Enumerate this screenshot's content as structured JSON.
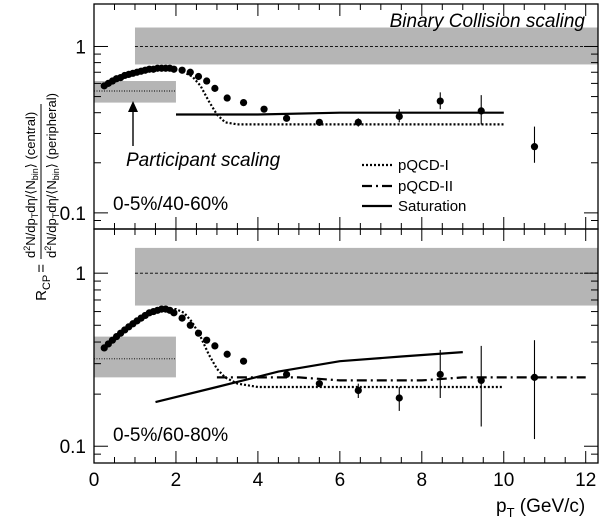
{
  "chart_data": [
    {
      "type": "scatter",
      "panel": "top",
      "label": "0-5%/40-60%",
      "ylim": [
        0.08,
        1.8
      ],
      "yscale": "log",
      "xlim": [
        0,
        12.3
      ],
      "yticks": [
        "1",
        "0.1"
      ],
      "yticks_values": [
        1,
        0.1
      ],
      "annotations": {
        "binary": "Binary Collision scaling",
        "participant": "Participant scaling"
      },
      "binary_band": {
        "x": [
          1.0,
          12.3
        ],
        "y": [
          0.78,
          1.3
        ],
        "line_y": 1.0
      },
      "participant_band": {
        "x": [
          0.0,
          2.0
        ],
        "y": [
          0.46,
          0.62
        ],
        "line_y": 0.54
      },
      "series": [
        {
          "name": "data",
          "x": [
            0.25,
            0.35,
            0.45,
            0.55,
            0.65,
            0.75,
            0.85,
            0.95,
            1.05,
            1.15,
            1.25,
            1.35,
            1.45,
            1.55,
            1.65,
            1.75,
            1.85,
            1.95,
            2.15,
            2.35,
            2.55,
            2.75,
            2.95,
            3.25,
            3.65,
            4.15,
            4.7,
            5.5,
            6.45,
            7.45,
            8.45,
            9.45,
            10.75
          ],
          "y": [
            0.58,
            0.6,
            0.62,
            0.64,
            0.65,
            0.67,
            0.68,
            0.69,
            0.7,
            0.71,
            0.72,
            0.73,
            0.73,
            0.74,
            0.74,
            0.74,
            0.74,
            0.73,
            0.72,
            0.7,
            0.66,
            0.62,
            0.56,
            0.49,
            0.46,
            0.42,
            0.37,
            0.35,
            0.35,
            0.38,
            0.47,
            0.41,
            0.25
          ],
          "err_low": [
            0,
            0,
            0,
            0,
            0,
            0,
            0,
            0,
            0,
            0,
            0,
            0,
            0,
            0,
            0,
            0,
            0,
            0,
            0,
            0,
            0,
            0,
            0,
            0,
            0,
            0,
            0,
            0,
            0.02,
            0.03,
            0.05,
            0.07,
            0.05
          ],
          "err_high": [
            0,
            0,
            0,
            0,
            0,
            0,
            0,
            0,
            0,
            0,
            0,
            0,
            0,
            0,
            0,
            0,
            0,
            0,
            0,
            0,
            0,
            0,
            0,
            0,
            0,
            0,
            0,
            0,
            0.02,
            0.04,
            0.06,
            0.1,
            0.08
          ]
        },
        {
          "name": "pQCD-I",
          "x": [
            0.3,
            0.6,
            0.9,
            1.2,
            1.5,
            1.8,
            2.1,
            2.4,
            2.6,
            2.8,
            3.0,
            3.2,
            3.5,
            4.0,
            5.0,
            6.0,
            7.0,
            8.0,
            9.0,
            10.0
          ],
          "y": [
            0.6,
            0.65,
            0.7,
            0.73,
            0.75,
            0.74,
            0.72,
            0.66,
            0.58,
            0.47,
            0.39,
            0.35,
            0.34,
            0.34,
            0.34,
            0.34,
            0.34,
            0.34,
            0.34,
            0.34
          ]
        },
        {
          "name": "Saturation",
          "x": [
            2.0,
            4.0,
            6.0,
            8.0,
            10.0
          ],
          "y": [
            0.39,
            0.39,
            0.4,
            0.4,
            0.4
          ]
        }
      ]
    },
    {
      "type": "scatter",
      "panel": "bottom",
      "label": "0-5%/60-80%",
      "ylim": [
        0.08,
        1.8
      ],
      "yscale": "log",
      "xlim": [
        0,
        12.3
      ],
      "yticks": [
        "1",
        "0.1"
      ],
      "yticks_values": [
        1,
        0.1
      ],
      "binary_band": {
        "x": [
          1.0,
          12.3
        ],
        "y": [
          0.65,
          1.4
        ],
        "line_y": 1.0
      },
      "participant_band": {
        "x": [
          0.0,
          2.0
        ],
        "y": [
          0.25,
          0.43
        ],
        "line_y": 0.32
      },
      "series": [
        {
          "name": "data",
          "x": [
            0.25,
            0.35,
            0.45,
            0.55,
            0.65,
            0.75,
            0.85,
            0.95,
            1.05,
            1.15,
            1.25,
            1.35,
            1.45,
            1.55,
            1.65,
            1.75,
            1.85,
            1.95,
            2.15,
            2.35,
            2.55,
            2.75,
            2.95,
            3.25,
            3.65,
            4.7,
            5.5,
            6.45,
            7.45,
            8.45,
            9.45,
            10.75
          ],
          "y": [
            0.37,
            0.39,
            0.41,
            0.43,
            0.45,
            0.47,
            0.49,
            0.51,
            0.53,
            0.55,
            0.57,
            0.59,
            0.6,
            0.61,
            0.62,
            0.62,
            0.61,
            0.59,
            0.55,
            0.5,
            0.45,
            0.41,
            0.38,
            0.34,
            0.31,
            0.26,
            0.23,
            0.21,
            0.19,
            0.26,
            0.24,
            0.25
          ],
          "err_low": [
            0,
            0,
            0,
            0,
            0,
            0,
            0,
            0,
            0,
            0,
            0,
            0,
            0,
            0,
            0,
            0,
            0,
            0,
            0,
            0,
            0,
            0,
            0,
            0,
            0,
            0.01,
            0.01,
            0.02,
            0.03,
            0.07,
            0.11,
            0.14
          ],
          "err_high": [
            0,
            0,
            0,
            0,
            0,
            0,
            0,
            0,
            0,
            0,
            0,
            0,
            0,
            0,
            0,
            0,
            0,
            0,
            0,
            0,
            0,
            0,
            0,
            0,
            0,
            0.01,
            0.01,
            0.02,
            0.03,
            0.1,
            0.14,
            0.16
          ]
        },
        {
          "name": "pQCD-I",
          "x": [
            0.3,
            0.6,
            0.9,
            1.2,
            1.5,
            1.8,
            2.0,
            2.2,
            2.4,
            2.6,
            2.8,
            3.0,
            3.2,
            3.5,
            4.0,
            5.0,
            6.0,
            7.0,
            8.0,
            9.0,
            10.0
          ],
          "y": [
            0.38,
            0.43,
            0.5,
            0.56,
            0.61,
            0.62,
            0.62,
            0.59,
            0.52,
            0.43,
            0.34,
            0.28,
            0.25,
            0.23,
            0.22,
            0.22,
            0.22,
            0.22,
            0.22,
            0.22,
            0.22
          ]
        },
        {
          "name": "pQCD-II",
          "x": [
            3.0,
            4.0,
            5.0,
            6.0,
            7.0,
            8.0,
            9.0,
            10.0,
            11.0,
            12.0
          ],
          "y": [
            0.25,
            0.25,
            0.25,
            0.24,
            0.24,
            0.24,
            0.25,
            0.25,
            0.25,
            0.25
          ]
        },
        {
          "name": "Saturation",
          "x": [
            1.5,
            3.0,
            4.5,
            6.0,
            7.5,
            9.0
          ],
          "y": [
            0.18,
            0.22,
            0.27,
            0.31,
            0.33,
            0.35
          ]
        }
      ]
    }
  ],
  "xaxis": {
    "ticks": [
      "0",
      "2",
      "4",
      "6",
      "8",
      "10",
      "12"
    ],
    "tick_values": [
      0,
      2,
      4,
      6,
      8,
      10,
      12
    ],
    "label_main": "p",
    "label_sub": "T",
    "label_tail": " (GeV/c)"
  },
  "yaxis": {
    "lhs_main": "R",
    "lhs_sub": "CP",
    "equals": "=",
    "num": {
      "a": "d",
      "b": "2",
      "c": "N/dp",
      "d": "T",
      "e": "dη/⟨N",
      "f": "bin",
      "g": "⟩ (central)"
    },
    "den": {
      "a": "d",
      "b": "2",
      "c": "N/dp",
      "d": "T",
      "e": "dη/⟨N",
      "f": "bin",
      "g": "⟩ (peripheral)"
    }
  },
  "legend": {
    "pqcd1": "pQCD-I",
    "pqcd2": "pQCD-II",
    "saturation": "Saturation"
  }
}
